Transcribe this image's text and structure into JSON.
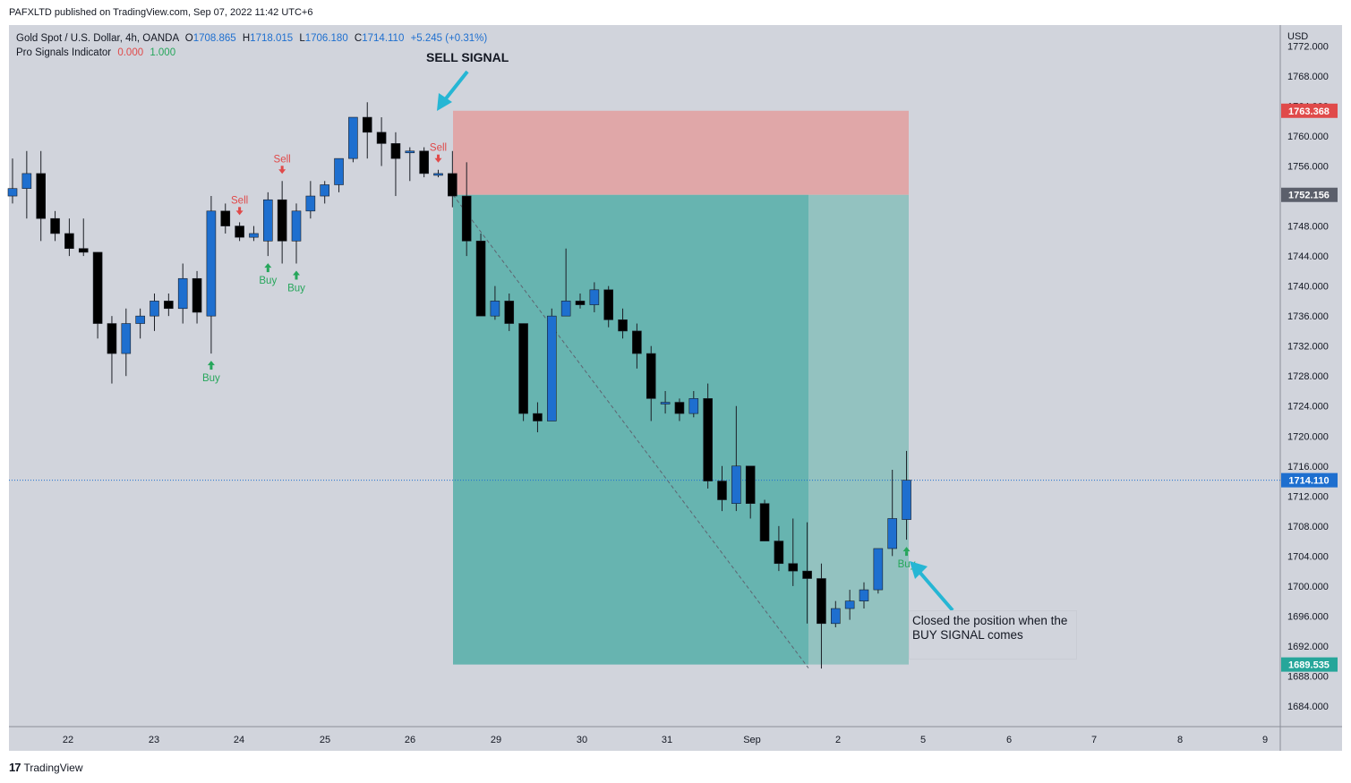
{
  "header": {
    "published": "PAFXLTD published on TradingView.com, Sep 07, 2022 11:42 UTC+6"
  },
  "legend": {
    "symbol": "Gold Spot / U.S. Dollar, 4h, OANDA",
    "open_label": "O",
    "open": "1708.865",
    "high_label": "H",
    "high": "1718.015",
    "low_label": "L",
    "low": "1706.180",
    "close_label": "C",
    "close": "1714.110",
    "change": "+5.245 (+0.31%)",
    "indicator": "Pro Signals Indicator",
    "ind_val1": "0.000",
    "ind_val2": "1.000"
  },
  "annotations": {
    "sell_signal": "SELL SIGNAL",
    "note": "Closed the position when the BUY SIGNAL comes"
  },
  "footer": {
    "brand": "TradingView",
    "logo": "17"
  },
  "colors": {
    "background": "#d1d4dc",
    "up_candle": "#1e6fcf",
    "down_candle": "#000000",
    "stop_zone": "#e0a7a8",
    "target_zone": "#67b4b0",
    "target_zone_light": "#93c2c0",
    "sell": "#e04a4a",
    "buy": "#26a65b",
    "last_price": "#1e6fcf"
  },
  "chart_data": {
    "type": "candlestick",
    "title": "Gold Spot / U.S. Dollar, 4h, OANDA",
    "currency": "USD",
    "y_ticks": [
      1684,
      1688,
      1692,
      1696,
      1700,
      1704,
      1708,
      1712,
      1716,
      1720,
      1724,
      1728,
      1732,
      1736,
      1740,
      1744,
      1748,
      1752,
      1756,
      1760,
      1764,
      1768,
      1772
    ],
    "y_tick_labels": [
      "1684.000",
      "1688.000",
      "1692.000",
      "1696.000",
      "1700.000",
      "1704.000",
      "1708.000",
      "1712.000",
      "1716.000",
      "1720.000",
      "1724.000",
      "1728.000",
      "1732.000",
      "1736.000",
      "1740.000",
      "1744.000",
      "1748.000",
      "1752.000",
      "1756.000",
      "1760.000",
      "1764.000",
      "1768.000",
      "1772.000"
    ],
    "x_tick_labels": [
      "22",
      "23",
      "24",
      "25",
      "26",
      "29",
      "30",
      "31",
      "Sep",
      "2",
      "5",
      "6",
      "7",
      "8",
      "9"
    ],
    "price_tags": [
      {
        "value": "1763.368",
        "color": "#e04a4a"
      },
      {
        "value": "1752.156",
        "color": "#5b5f6b"
      },
      {
        "value": "1714.110",
        "color": "#1e6fcf"
      },
      {
        "value": "1689.535",
        "color": "#26a69a"
      }
    ],
    "position": {
      "direction": "short",
      "entry": 1752.156,
      "stop": 1763.368,
      "target": 1689.535
    },
    "candles": [
      {
        "o": 1752.0,
        "h": 1757.0,
        "l": 1751.0,
        "c": 1753.0
      },
      {
        "o": 1753.0,
        "h": 1758.0,
        "l": 1749.0,
        "c": 1755.0
      },
      {
        "o": 1755.0,
        "h": 1758.0,
        "l": 1746.0,
        "c": 1749.0
      },
      {
        "o": 1749.0,
        "h": 1750.0,
        "l": 1746.0,
        "c": 1747.0
      },
      {
        "o": 1747.0,
        "h": 1749.0,
        "l": 1744.0,
        "c": 1745.0
      },
      {
        "o": 1745.0,
        "h": 1749.0,
        "l": 1744.0,
        "c": 1744.5
      },
      {
        "o": 1744.5,
        "h": 1744.5,
        "l": 1733.0,
        "c": 1735.0
      },
      {
        "o": 1735.0,
        "h": 1736.0,
        "l": 1727.0,
        "c": 1731.0
      },
      {
        "o": 1731.0,
        "h": 1737.0,
        "l": 1728.0,
        "c": 1735.0
      },
      {
        "o": 1735.0,
        "h": 1737.0,
        "l": 1733.0,
        "c": 1736.0
      },
      {
        "o": 1736.0,
        "h": 1739.0,
        "l": 1734.0,
        "c": 1738.0
      },
      {
        "o": 1738.0,
        "h": 1739.0,
        "l": 1736.0,
        "c": 1737.0
      },
      {
        "o": 1737.0,
        "h": 1743.0,
        "l": 1735.0,
        "c": 1741.0
      },
      {
        "o": 1741.0,
        "h": 1742.0,
        "l": 1735.0,
        "c": 1736.5
      },
      {
        "o": 1736.0,
        "h": 1752.0,
        "l": 1731.0,
        "c": 1750.0
      },
      {
        "o": 1750.0,
        "h": 1751.0,
        "l": 1747.0,
        "c": 1748.0
      },
      {
        "o": 1748.0,
        "h": 1748.5,
        "l": 1746.0,
        "c": 1746.5
      },
      {
        "o": 1746.5,
        "h": 1748.0,
        "l": 1746.0,
        "c": 1747.0
      },
      {
        "o": 1746.0,
        "h": 1752.5,
        "l": 1744.0,
        "c": 1751.5
      },
      {
        "o": 1751.5,
        "h": 1754.0,
        "l": 1743.0,
        "c": 1746.0
      },
      {
        "o": 1746.0,
        "h": 1751.0,
        "l": 1743.0,
        "c": 1750.0
      },
      {
        "o": 1750.0,
        "h": 1754.0,
        "l": 1749.0,
        "c": 1752.0
      },
      {
        "o": 1752.0,
        "h": 1754.0,
        "l": 1751.0,
        "c": 1753.5
      },
      {
        "o": 1753.5,
        "h": 1757.0,
        "l": 1752.5,
        "c": 1757.0
      },
      {
        "o": 1757.0,
        "h": 1762.0,
        "l": 1756.5,
        "c": 1762.5
      },
      {
        "o": 1762.5,
        "h": 1764.5,
        "l": 1757.0,
        "c": 1760.5
      },
      {
        "o": 1760.5,
        "h": 1762.5,
        "l": 1756.0,
        "c": 1759.0
      },
      {
        "o": 1759.0,
        "h": 1760.5,
        "l": 1752.0,
        "c": 1757.0
      },
      {
        "o": 1758.0,
        "h": 1758.5,
        "l": 1754.0,
        "c": 1758.0
      },
      {
        "o": 1758.0,
        "h": 1758.5,
        "l": 1754.5,
        "c": 1755.0
      },
      {
        "o": 1755.0,
        "h": 1755.5,
        "l": 1754.5,
        "c": 1755.0
      },
      {
        "o": 1755.0,
        "h": 1758.0,
        "l": 1750.5,
        "c": 1752.0
      },
      {
        "o": 1752.0,
        "h": 1756.5,
        "l": 1744.0,
        "c": 1746.0
      },
      {
        "o": 1746.0,
        "h": 1747.0,
        "l": 1736.0,
        "c": 1736.0
      },
      {
        "o": 1736.0,
        "h": 1740.0,
        "l": 1735.5,
        "c": 1738.0
      },
      {
        "o": 1738.0,
        "h": 1739.0,
        "l": 1734.0,
        "c": 1735.0
      },
      {
        "o": 1735.0,
        "h": 1735.0,
        "l": 1722.0,
        "c": 1723.0
      },
      {
        "o": 1723.0,
        "h": 1724.5,
        "l": 1720.5,
        "c": 1722.0
      },
      {
        "o": 1722.0,
        "h": 1737.0,
        "l": 1722.0,
        "c": 1736.0
      },
      {
        "o": 1736.0,
        "h": 1745.0,
        "l": 1736.0,
        "c": 1738.0
      },
      {
        "o": 1738.0,
        "h": 1739.0,
        "l": 1737.0,
        "c": 1737.5
      },
      {
        "o": 1737.5,
        "h": 1740.5,
        "l": 1736.5,
        "c": 1739.5
      },
      {
        "o": 1739.5,
        "h": 1740.0,
        "l": 1734.5,
        "c": 1735.5
      },
      {
        "o": 1735.5,
        "h": 1737.0,
        "l": 1733.0,
        "c": 1734.0
      },
      {
        "o": 1734.0,
        "h": 1735.0,
        "l": 1729.0,
        "c": 1731.0
      },
      {
        "o": 1731.0,
        "h": 1732.0,
        "l": 1722.0,
        "c": 1725.0
      },
      {
        "o": 1724.5,
        "h": 1726.0,
        "l": 1723.0,
        "c": 1724.5
      },
      {
        "o": 1724.5,
        "h": 1725.0,
        "l": 1722.0,
        "c": 1723.0
      },
      {
        "o": 1723.0,
        "h": 1726.0,
        "l": 1722.5,
        "c": 1725.0
      },
      {
        "o": 1725.0,
        "h": 1727.0,
        "l": 1713.0,
        "c": 1714.0
      },
      {
        "o": 1714.0,
        "h": 1716.0,
        "l": 1710.0,
        "c": 1711.5
      },
      {
        "o": 1711.0,
        "h": 1724.0,
        "l": 1710.0,
        "c": 1716.0
      },
      {
        "o": 1716.0,
        "h": 1716.0,
        "l": 1709.0,
        "c": 1711.0
      },
      {
        "o": 1711.0,
        "h": 1711.5,
        "l": 1706.0,
        "c": 1706.0
      },
      {
        "o": 1706.0,
        "h": 1708.0,
        "l": 1702.0,
        "c": 1703.0
      },
      {
        "o": 1703.0,
        "h": 1709.0,
        "l": 1700.0,
        "c": 1702.0
      },
      {
        "o": 1702.0,
        "h": 1708.5,
        "l": 1695.0,
        "c": 1701.0
      },
      {
        "o": 1701.0,
        "h": 1703.0,
        "l": 1689.0,
        "c": 1695.0
      },
      {
        "o": 1695.0,
        "h": 1698.0,
        "l": 1694.5,
        "c": 1697.0
      },
      {
        "o": 1697.0,
        "h": 1699.5,
        "l": 1695.5,
        "c": 1698.0
      },
      {
        "o": 1698.0,
        "h": 1700.5,
        "l": 1697.0,
        "c": 1699.5
      },
      {
        "o": 1699.5,
        "h": 1705.0,
        "l": 1699.0,
        "c": 1705.0
      },
      {
        "o": 1705.0,
        "h": 1715.5,
        "l": 1704.0,
        "c": 1709.0
      },
      {
        "o": 1708.865,
        "h": 1718.015,
        "l": 1706.18,
        "c": 1714.11
      }
    ],
    "signals": [
      {
        "type": "sell",
        "index": 16,
        "label": "Sell"
      },
      {
        "type": "sell",
        "index": 19,
        "label": "Sell"
      },
      {
        "type": "sell",
        "index": 30,
        "label": "Sell"
      },
      {
        "type": "buy",
        "index": 14,
        "label": "Buy"
      },
      {
        "type": "buy",
        "index": 18,
        "label": "Buy"
      },
      {
        "type": "buy",
        "index": 20,
        "label": "Buy"
      },
      {
        "type": "buy",
        "index": 63,
        "label": "Buy"
      }
    ]
  }
}
